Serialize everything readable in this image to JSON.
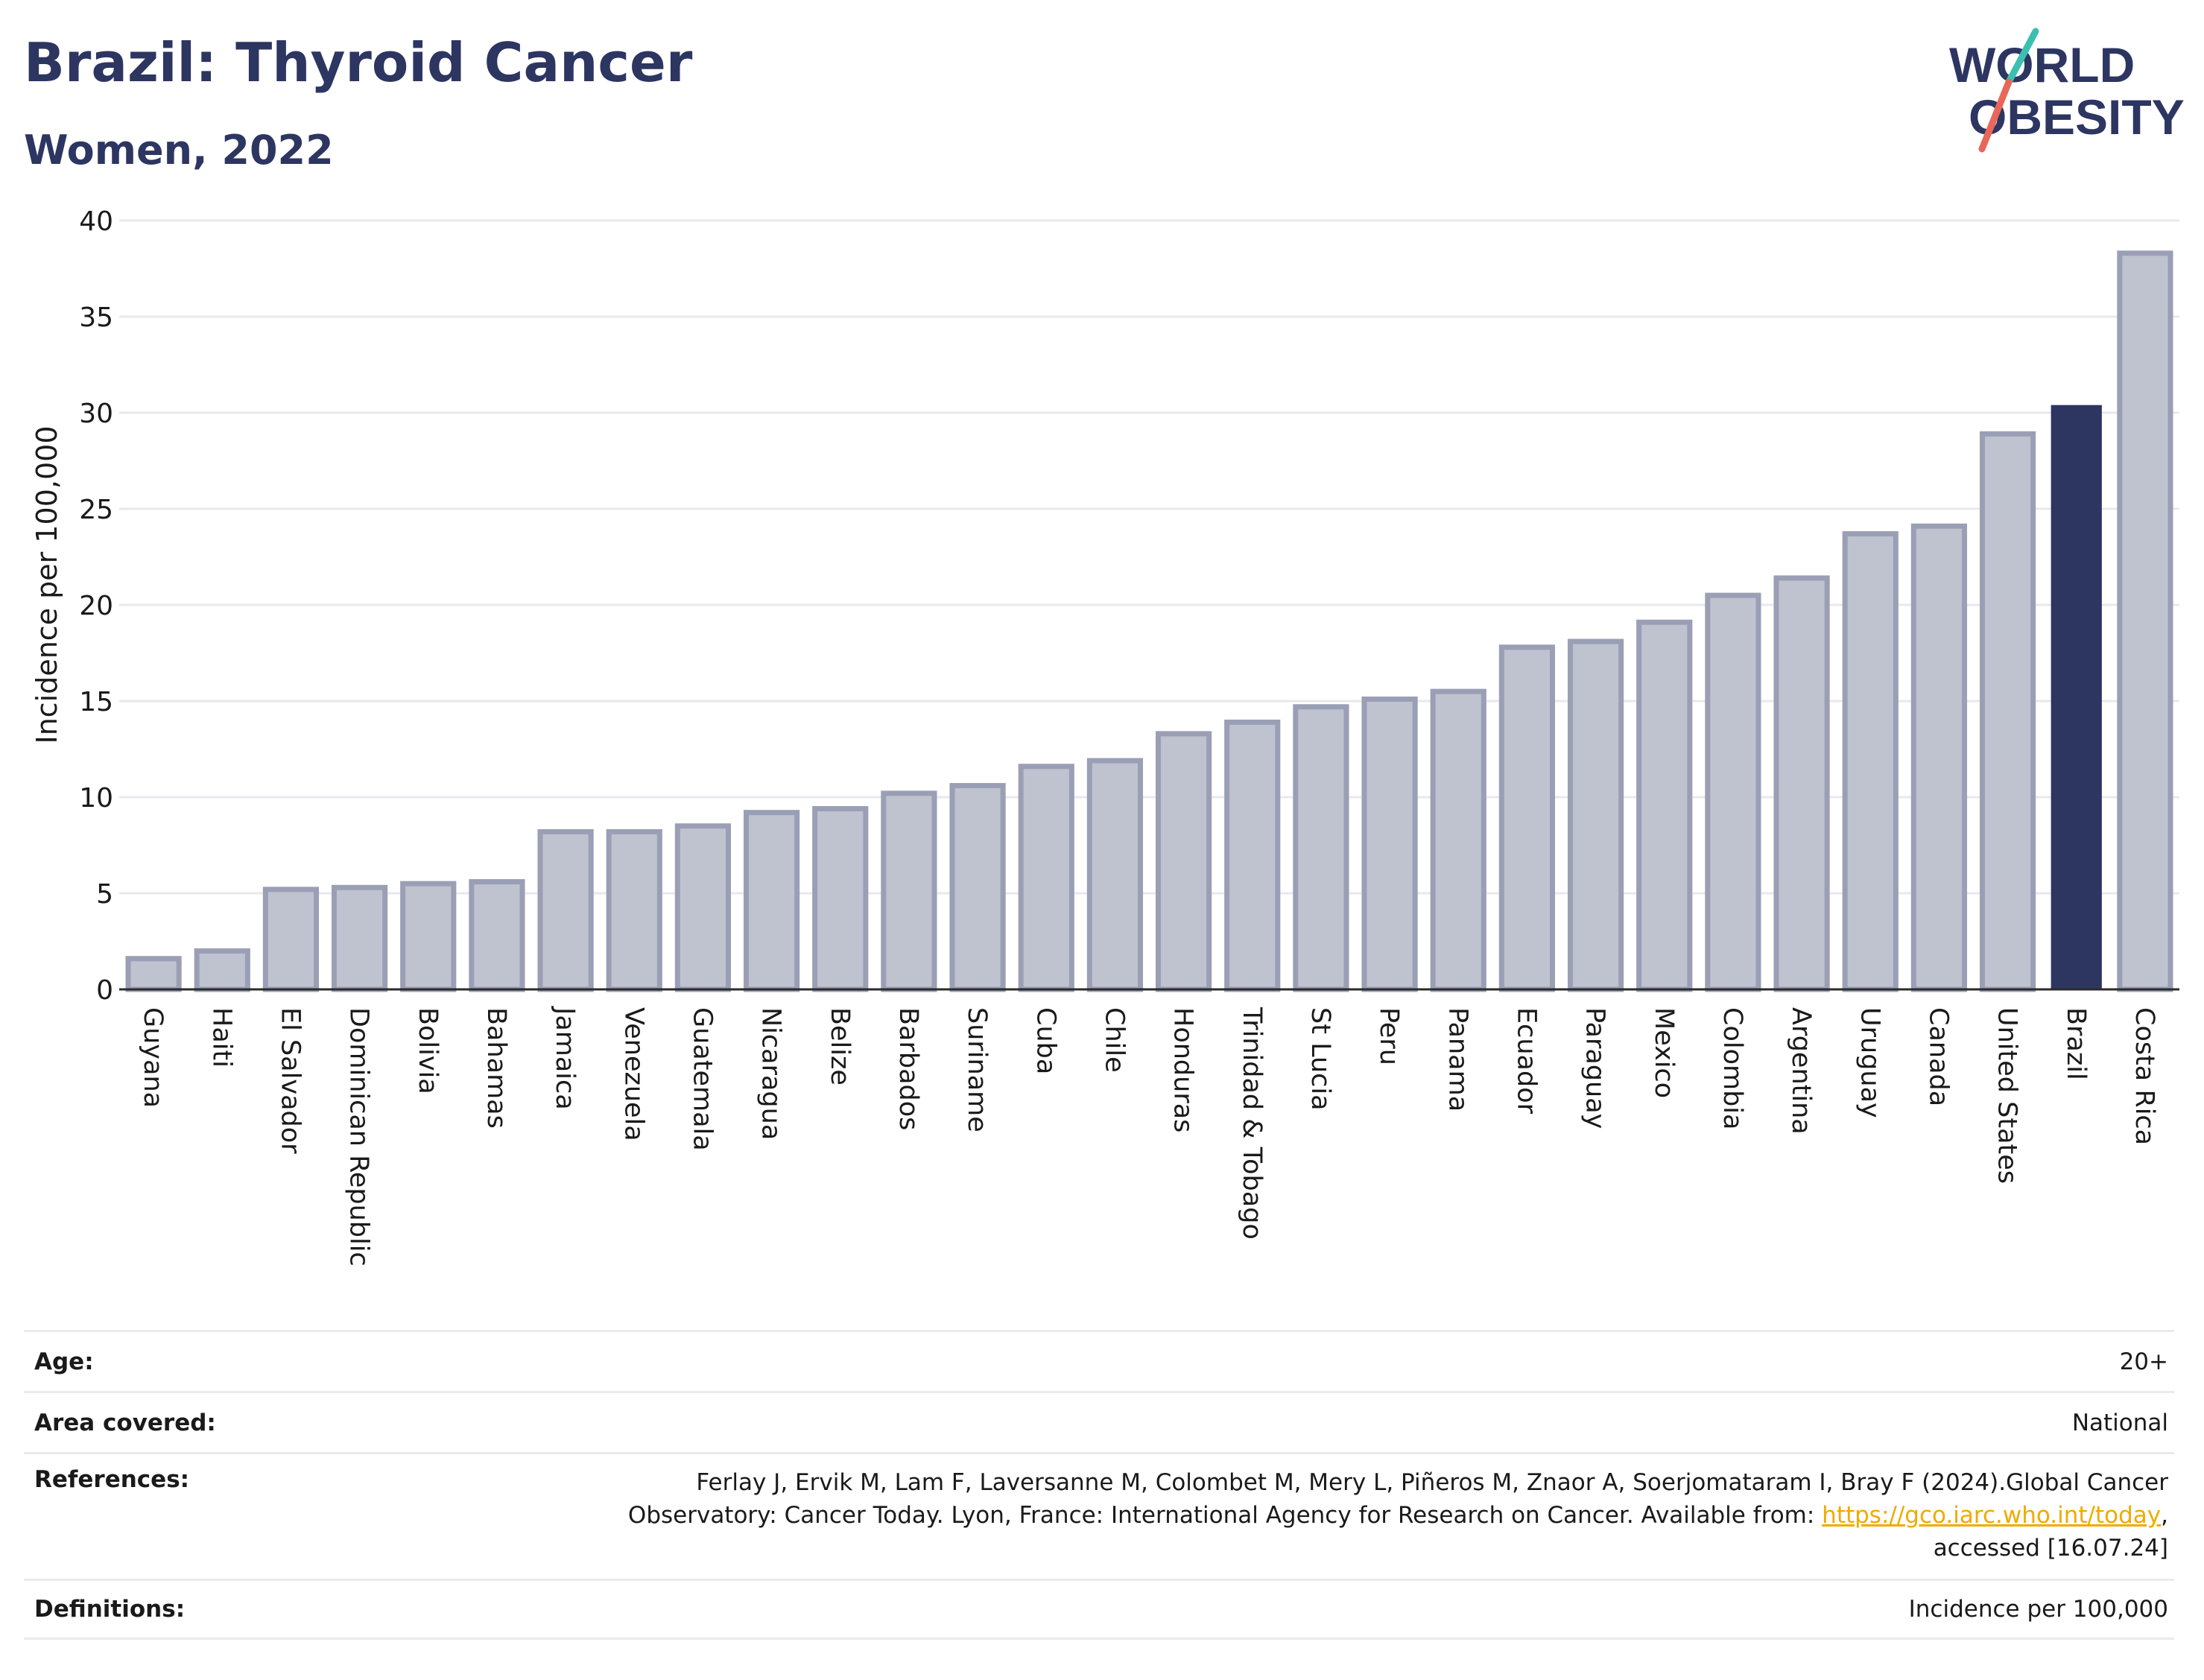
{
  "header": {
    "title": "Brazil: Thyroid Cancer",
    "subtitle": "Women, 2022"
  },
  "logo": {
    "line1": "WORLD",
    "line2": "OBESITY",
    "slash_colors": [
      "#3bbfb0",
      "#e8675a"
    ]
  },
  "colors": {
    "highlight": "#2d3561",
    "bar_fill": "#bfc2cf",
    "bar_stroke": "#9a9fb5",
    "link": "#f2a900",
    "grid": "#e8e8ee"
  },
  "chart_data": {
    "type": "bar",
    "title": "Brazil: Thyroid Cancer",
    "subtitle": "Women, 2022",
    "xlabel": "",
    "ylabel": "Incidence per 100,000",
    "ylim": [
      0,
      40
    ],
    "yticks": [
      0,
      5,
      10,
      15,
      20,
      25,
      30,
      35,
      40
    ],
    "grid": true,
    "highlight": "Brazil",
    "categories": [
      "Guyana",
      "Haiti",
      "El Salvador",
      "Dominican Republic",
      "Bolivia",
      "Bahamas",
      "Jamaica",
      "Venezuela",
      "Guatemala",
      "Nicaragua",
      "Belize",
      "Barbados",
      "Suriname",
      "Cuba",
      "Chile",
      "Honduras",
      "Trinidad & Tobago",
      "St Lucia",
      "Peru",
      "Panama",
      "Ecuador",
      "Paraguay",
      "Mexico",
      "Colombia",
      "Argentina",
      "Uruguay",
      "Canada",
      "United States",
      "Brazil",
      "Costa Rica"
    ],
    "values": [
      1.6,
      2.0,
      5.2,
      5.3,
      5.5,
      5.6,
      8.2,
      8.2,
      8.5,
      9.2,
      9.4,
      10.2,
      10.6,
      11.6,
      11.9,
      13.3,
      13.9,
      14.7,
      15.1,
      15.5,
      17.8,
      18.1,
      19.1,
      20.5,
      21.4,
      23.7,
      24.1,
      28.9,
      30.4,
      38.3
    ]
  },
  "info": {
    "age_label": "Age:",
    "age_value": "20+",
    "area_label": "Area covered:",
    "area_value": "National",
    "references_label": "References:",
    "references_line1": "Ferlay J, Ervik M, Lam F, Laversanne M, Colombet M, Mery L, Piñeros M, Znaor A, Soerjomataram I, Bray F (2024).Global Cancer",
    "references_line2": "Observatory: Cancer Today. Lyon, France: International Agency for Research on Cancer. Available from: ",
    "references_link": "https://gco.iarc.who.int/today",
    "references_after_link": ",",
    "references_line3": "accessed [16.07.24]",
    "definitions_label": "Definitions:",
    "definitions_value": "Incidence per 100,000"
  }
}
